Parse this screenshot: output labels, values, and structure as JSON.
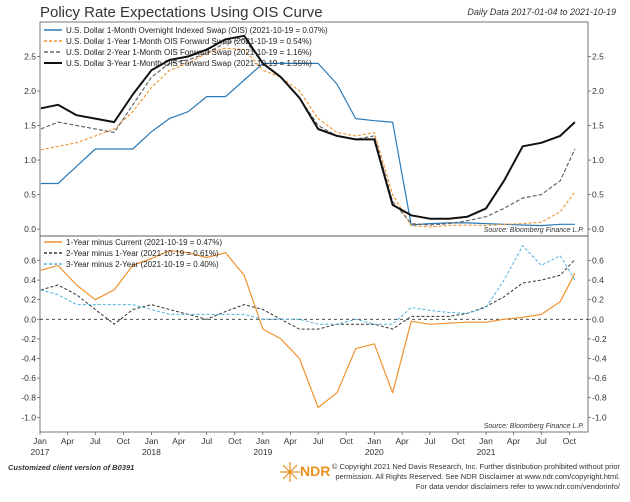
{
  "title": "Policy Rate Expectations Using OIS Curve",
  "date_range": "Daily Data 2017-01-04 to 2021-10-19",
  "footer": {
    "customized": "Customized client version of B0391",
    "logo_text": "NDR",
    "copyright_lines": [
      "© Copyright 2021 Ned Davis Research, Inc. Further distribution prohibited without prior",
      "permission. All Rights Reserved. See NDR Disclaimer at www.ndr.com/copyright.html.",
      "For data vendor disclaimers refer to www.ndr.com/vendorinfo/"
    ]
  },
  "colors": {
    "ois": "#2a7ab8",
    "fwd1": "#f0922e",
    "fwd2": "#666666",
    "fwd3": "#111111",
    "d1": "#f0922e",
    "d2": "#333333",
    "d3": "#4eb3e0",
    "logo": "#e8901e"
  },
  "chart_data": [
    {
      "type": "line",
      "source": "Source:  Bloomberg Finance L.P.",
      "ylim": [
        -0.1,
        3.0
      ],
      "yticks": [
        0.0,
        0.5,
        1.0,
        1.5,
        2.0,
        2.5
      ],
      "ytick_labels": [
        "0.0",
        "0.5",
        "1.0",
        "1.5",
        "2.0",
        "2.5"
      ],
      "x": [
        "2017-01-04",
        "2017-03-01",
        "2017-05-01",
        "2017-07-01",
        "2017-09-01",
        "2017-11-01",
        "2018-01-01",
        "2018-03-01",
        "2018-05-01",
        "2018-07-01",
        "2018-09-01",
        "2018-11-01",
        "2019-01-01",
        "2019-03-01",
        "2019-05-01",
        "2019-07-01",
        "2019-09-01",
        "2019-11-01",
        "2020-01-01",
        "2020-03-01",
        "2020-05-01",
        "2020-07-01",
        "2020-09-01",
        "2020-11-01",
        "2021-01-01",
        "2021-03-01",
        "2021-05-01",
        "2021-07-01",
        "2021-09-01",
        "2021-10-19"
      ],
      "series": [
        {
          "name": "U.S. Dollar 1-Month Overnight Indexed Swap (OIS) (2021-10-19 = 0.07%)",
          "color_key": "ois",
          "width": 1.2,
          "dash": "",
          "values": [
            0.66,
            0.66,
            0.91,
            1.16,
            1.16,
            1.16,
            1.41,
            1.6,
            1.7,
            1.92,
            1.92,
            2.16,
            2.4,
            2.4,
            2.4,
            2.4,
            2.1,
            1.6,
            1.57,
            1.55,
            0.06,
            0.08,
            0.09,
            0.09,
            0.08,
            0.07,
            0.06,
            0.05,
            0.07,
            0.07
          ]
        },
        {
          "name": "U.S. Dollar 1-Year 1-Month OIS Forward Swap (2021-10-19 = 0.54%)",
          "color_key": "fwd1",
          "width": 1.1,
          "dash": "3,2",
          "values": [
            1.15,
            1.2,
            1.25,
            1.35,
            1.45,
            1.7,
            2.05,
            2.3,
            2.4,
            2.55,
            2.62,
            2.6,
            2.3,
            2.2,
            2.0,
            1.6,
            1.4,
            1.35,
            1.4,
            0.5,
            0.05,
            0.03,
            0.05,
            0.06,
            0.05,
            0.07,
            0.08,
            0.1,
            0.25,
            0.54
          ]
        },
        {
          "name": "U.S. Dollar 2-Year 1-Month OIS Forward Swap (2021-10-19 = 1.16%)",
          "color_key": "fwd2",
          "width": 1.2,
          "dash": "4,2",
          "values": [
            1.45,
            1.55,
            1.5,
            1.45,
            1.4,
            1.8,
            2.2,
            2.4,
            2.45,
            2.55,
            2.7,
            2.75,
            2.4,
            2.2,
            1.9,
            1.5,
            1.35,
            1.3,
            1.35,
            0.4,
            0.08,
            0.06,
            0.08,
            0.12,
            0.18,
            0.3,
            0.45,
            0.5,
            0.7,
            1.16
          ]
        },
        {
          "name": "U.S. Dollar 3-Year 1-Month OIS Forward Swap (2021-10-19 = 1.55%)",
          "color_key": "fwd3",
          "width": 2.0,
          "dash": "",
          "values": [
            1.75,
            1.8,
            1.65,
            1.6,
            1.55,
            1.95,
            2.3,
            2.45,
            2.5,
            2.6,
            2.75,
            2.8,
            2.4,
            2.2,
            1.9,
            1.45,
            1.35,
            1.3,
            1.3,
            0.35,
            0.2,
            0.15,
            0.15,
            0.18,
            0.3,
            0.7,
            1.2,
            1.25,
            1.35,
            1.55
          ]
        }
      ]
    },
    {
      "type": "line",
      "source": "Source:  Bloomberg Finance L.P.",
      "ylim": [
        -1.15,
        0.85
      ],
      "yticks": [
        -1.0,
        -0.8,
        -0.6,
        -0.4,
        -0.2,
        0.0,
        0.2,
        0.4,
        0.6
      ],
      "ytick_labels": [
        "-1.0",
        "-0.8",
        "-0.6",
        "-0.4",
        "-0.2",
        "0.0",
        "0.2",
        "0.4",
        "0.6"
      ],
      "zero_line": 0.0,
      "x": [
        "2017-01-04",
        "2017-03-01",
        "2017-05-01",
        "2017-07-01",
        "2017-09-01",
        "2017-11-01",
        "2018-01-01",
        "2018-03-01",
        "2018-05-01",
        "2018-07-01",
        "2018-09-01",
        "2018-11-01",
        "2019-01-01",
        "2019-03-01",
        "2019-05-01",
        "2019-07-01",
        "2019-09-01",
        "2019-11-01",
        "2020-01-01",
        "2020-03-01",
        "2020-05-01",
        "2020-07-01",
        "2020-09-01",
        "2020-11-01",
        "2021-01-01",
        "2021-03-01",
        "2021-05-01",
        "2021-07-01",
        "2021-09-01",
        "2021-10-19"
      ],
      "x_month_labels": [
        "Jan",
        "Apr",
        "Jul",
        "Oct",
        "Jan",
        "Apr",
        "Jul",
        "Oct",
        "Jan",
        "Apr",
        "Jul",
        "Oct",
        "Jan",
        "Apr",
        "Jul",
        "Oct",
        "Jan",
        "Apr",
        "Jul",
        "Oct"
      ],
      "x_year_labels": [
        "2017",
        "2018",
        "2019",
        "2020",
        "2021"
      ],
      "series": [
        {
          "name": "1-Year minus Current (2021-10-19 = 0.47%)",
          "color_key": "d1",
          "width": 1.2,
          "dash": "",
          "values": [
            0.5,
            0.55,
            0.35,
            0.2,
            0.3,
            0.55,
            0.62,
            0.7,
            0.68,
            0.63,
            0.68,
            0.45,
            -0.1,
            -0.2,
            -0.4,
            -0.9,
            -0.75,
            -0.3,
            -0.25,
            -0.75,
            -0.02,
            -0.05,
            -0.04,
            -0.03,
            -0.03,
            0.0,
            0.02,
            0.05,
            0.18,
            0.47
          ]
        },
        {
          "name": "2-Year minus 1-Year (2021-10-19 = 0.61%)",
          "color_key": "d2",
          "width": 1.0,
          "dash": "3,2",
          "values": [
            0.3,
            0.35,
            0.25,
            0.1,
            -0.05,
            0.1,
            0.15,
            0.1,
            0.05,
            0.0,
            0.08,
            0.15,
            0.1,
            0.0,
            -0.1,
            -0.1,
            -0.05,
            -0.05,
            -0.05,
            -0.1,
            0.03,
            0.03,
            0.03,
            0.06,
            0.13,
            0.23,
            0.37,
            0.4,
            0.45,
            0.61
          ]
        },
        {
          "name": "3-Year minus 2-Year (2021-10-19 = 0.40%)",
          "color_key": "d3",
          "width": 1.0,
          "dash": "3,2",
          "values": [
            0.3,
            0.25,
            0.15,
            0.15,
            0.15,
            0.15,
            0.1,
            0.05,
            0.05,
            0.05,
            0.05,
            0.05,
            0.0,
            0.0,
            0.0,
            -0.05,
            -0.05,
            0.0,
            -0.05,
            -0.05,
            0.12,
            0.09,
            0.07,
            0.06,
            0.12,
            0.4,
            0.75,
            0.55,
            0.65,
            0.4
          ]
        }
      ]
    }
  ]
}
